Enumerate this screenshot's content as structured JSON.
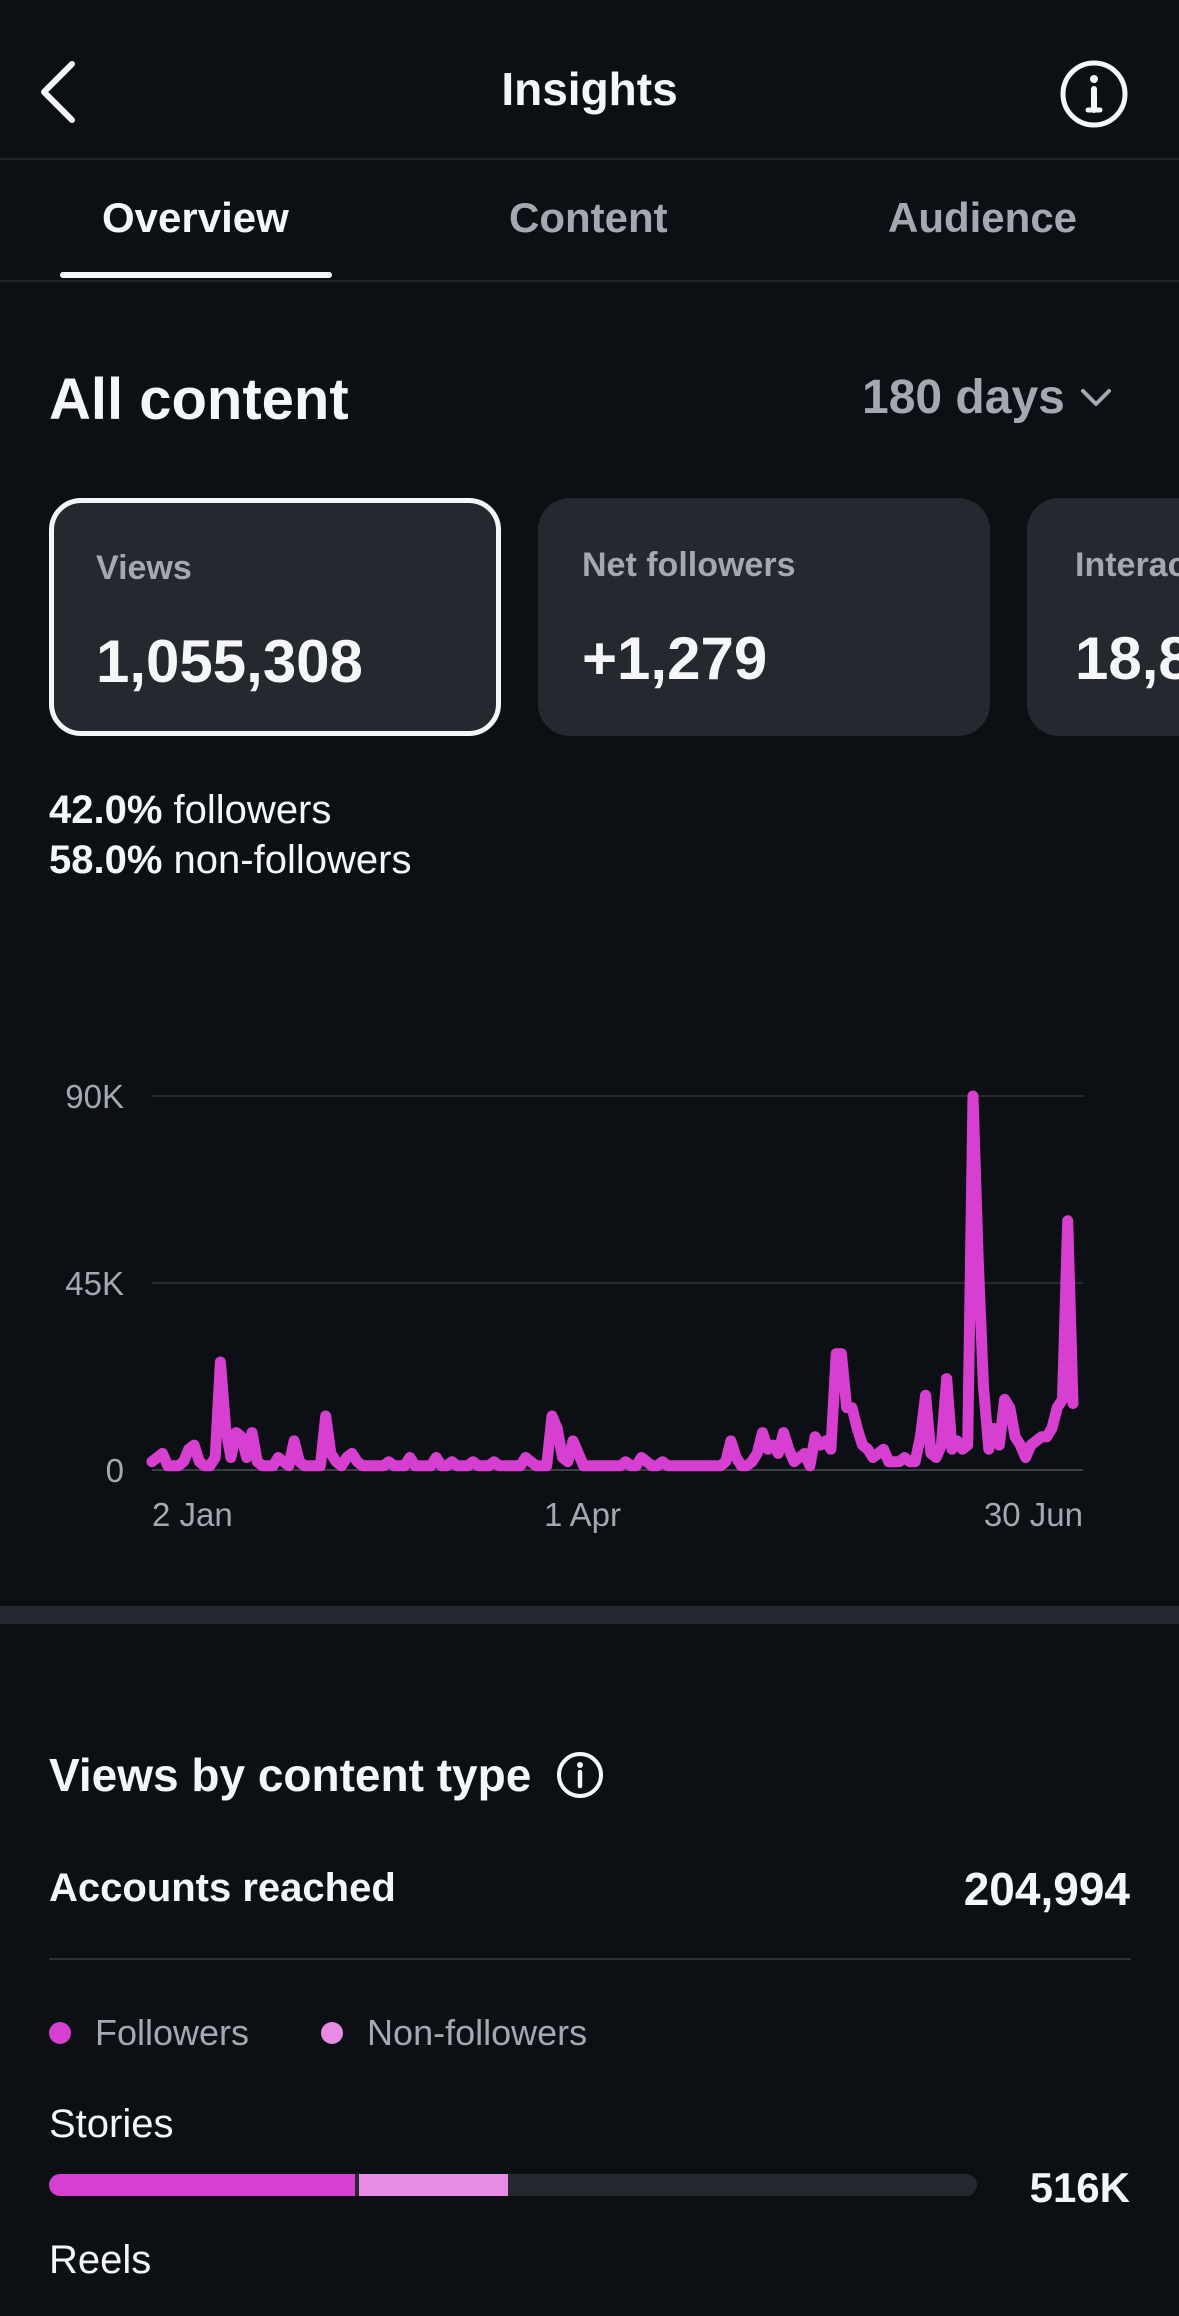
{
  "header": {
    "title": "Insights"
  },
  "tabs": [
    {
      "label": "Overview",
      "active": true
    },
    {
      "label": "Content",
      "active": false
    },
    {
      "label": "Audience",
      "active": false
    }
  ],
  "section": {
    "title": "All content",
    "range": "180 days"
  },
  "cards": [
    {
      "label": "Views",
      "value": "1,055,308"
    },
    {
      "label": "Net followers",
      "value": "+1,279"
    },
    {
      "label": "Interactions",
      "value": "18,8"
    }
  ],
  "split": {
    "followers_pct": "42.0%",
    "followers_label": "followers",
    "nonfollowers_pct": "58.0%",
    "nonfollowers_label": "non-followers"
  },
  "chart_data": {
    "type": "line",
    "ylim": [
      0,
      90000
    ],
    "y_ticks": [
      "90K",
      "45K",
      "0"
    ],
    "x_tick_labels": [
      "2 Jan",
      "1 Apr",
      "30 Jun"
    ],
    "grid": true,
    "line_color": "#d63fd0",
    "values": [
      2000,
      3000,
      4000,
      1000,
      1000,
      1000,
      2000,
      5000,
      6000,
      2000,
      1000,
      1000,
      3000,
      26000,
      10000,
      3000,
      9000,
      8000,
      3000,
      9000,
      2000,
      1000,
      1000,
      1000,
      3000,
      2000,
      1000,
      7000,
      2000,
      1000,
      1000,
      1000,
      1000,
      13000,
      4000,
      2000,
      1000,
      3000,
      4000,
      2000,
      1000,
      1000,
      1000,
      1000,
      1000,
      2000,
      1000,
      1000,
      1000,
      3000,
      1000,
      1000,
      1000,
      1000,
      3000,
      1000,
      1000,
      2000,
      1000,
      1000,
      1000,
      2000,
      1000,
      1000,
      1000,
      2000,
      1000,
      1000,
      1000,
      1000,
      1000,
      3000,
      2000,
      1000,
      1000,
      1000,
      13000,
      10000,
      3000,
      2000,
      7000,
      4000,
      1000,
      1000,
      1000,
      1000,
      1000,
      1000,
      1000,
      1000,
      2000,
      1000,
      1000,
      3000,
      2000,
      1000,
      1000,
      2000,
      1000,
      1000,
      1000,
      1000,
      1000,
      1000,
      1000,
      1000,
      1000,
      1000,
      1000,
      2000,
      7000,
      3000,
      1000,
      1000,
      2000,
      4000,
      9000,
      5000,
      6000,
      4000,
      9000,
      5000,
      2000,
      3000,
      4000,
      1000,
      8000,
      6000,
      7000,
      5000,
      28000,
      28000,
      15000,
      15000,
      10000,
      6000,
      5000,
      3000,
      4000,
      5000,
      2000,
      2000,
      2000,
      3000,
      2000,
      2000,
      8000,
      18000,
      4000,
      3000,
      6000,
      22000,
      5000,
      7000,
      5000,
      6000,
      90000,
      50000,
      20000,
      5000,
      10000,
      6000,
      17000,
      15000,
      8000,
      6000,
      3000,
      6000,
      7000,
      8000,
      8000,
      10000,
      15000,
      17000,
      60000,
      16000
    ]
  },
  "breakdown": {
    "title": "Views by content type",
    "accounts_label": "Accounts reached",
    "accounts_value": "204,994",
    "legend": [
      {
        "label": "Followers",
        "color": "#d63fd0"
      },
      {
        "label": "Non-followers",
        "color": "#e88be4"
      }
    ],
    "rows": [
      {
        "label": "Stories",
        "followers_fraction": 0.33,
        "nonfollowers_fraction": 0.16,
        "value": "516K"
      },
      {
        "label": "Reels"
      }
    ]
  }
}
